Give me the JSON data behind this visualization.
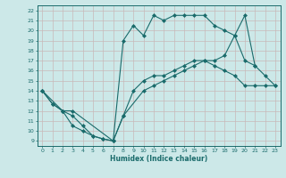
{
  "xlabel": "Humidex (Indice chaleur)",
  "bg_color": "#cce8e8",
  "grid_color": "#aacccc",
  "line_color": "#1a6b6b",
  "xlim": [
    -0.5,
    23.5
  ],
  "ylim": [
    8.5,
    22.5
  ],
  "xticks": [
    0,
    1,
    2,
    3,
    4,
    5,
    6,
    7,
    8,
    9,
    10,
    11,
    12,
    13,
    14,
    15,
    16,
    17,
    18,
    19,
    20,
    21,
    22,
    23
  ],
  "yticks": [
    9,
    10,
    11,
    12,
    13,
    14,
    15,
    16,
    17,
    18,
    19,
    20,
    21,
    22
  ],
  "line1_x": [
    0,
    1,
    2,
    3,
    4,
    5,
    6,
    7,
    8,
    9,
    10,
    11,
    12,
    13,
    14,
    15,
    16,
    17,
    18,
    19,
    20,
    21,
    22,
    23
  ],
  "line1_y": [
    14,
    12.7,
    12.0,
    11.5,
    10.5,
    9.5,
    9.2,
    9.0,
    11.5,
    14.0,
    15.0,
    15.5,
    15.5,
    16.0,
    16.5,
    17.0,
    17.0,
    17.0,
    17.5,
    19.5,
    17.0,
    16.5,
    15.5,
    14.5
  ],
  "line2_x": [
    0,
    1,
    2,
    3,
    4,
    5,
    6,
    7,
    8,
    9,
    10,
    11,
    12,
    13,
    14,
    15,
    16,
    17,
    18,
    19,
    20,
    21
  ],
  "line2_y": [
    14,
    12.7,
    12.0,
    10.5,
    10.0,
    9.5,
    9.2,
    9.0,
    19.0,
    20.5,
    19.5,
    21.5,
    21.0,
    21.5,
    21.5,
    21.5,
    21.5,
    20.5,
    20.0,
    19.5,
    21.5,
    16.5
  ],
  "line3_x": [
    0,
    2,
    3,
    7,
    8,
    10,
    11,
    12,
    13,
    14,
    15,
    16,
    17,
    18,
    19,
    20,
    21,
    22,
    23
  ],
  "line3_y": [
    14,
    12.0,
    12.0,
    9.0,
    11.5,
    14.0,
    14.5,
    15.0,
    15.5,
    16.0,
    16.5,
    17.0,
    16.5,
    16.0,
    15.5,
    14.5,
    14.5,
    14.5,
    14.5
  ]
}
